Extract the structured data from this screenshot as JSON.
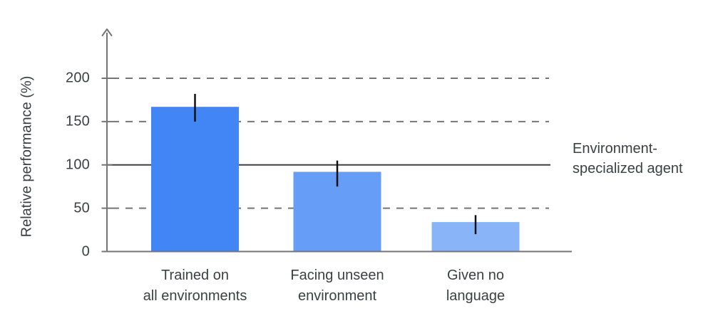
{
  "chart_data": {
    "type": "bar",
    "title": "",
    "unit": "%",
    "ylabel": "Relative performance (%)",
    "xlabel": "",
    "categories": [
      "Trained on all environments",
      "Facing unseen environment",
      "Given no language"
    ],
    "categories_display": [
      "Trained on\nall environments",
      "Facing unseen\nenvironment",
      "Given no\nlanguage"
    ],
    "values": [
      167,
      92,
      34
    ],
    "error_bars": [
      {
        "low": 150,
        "high": 182
      },
      {
        "low": 75,
        "high": 105
      },
      {
        "low": 20,
        "high": 42
      }
    ],
    "bar_colors": [
      "#4285F4",
      "#669DF6",
      "#8AB4F8"
    ],
    "yticks": [
      0,
      50,
      100,
      150,
      200
    ],
    "ytick_labels": [
      "0",
      "50",
      "100",
      "150",
      "200"
    ],
    "ylim": [
      0,
      255
    ],
    "dashed_gridlines": [
      50,
      150,
      200
    ],
    "reference_line": {
      "value": 100,
      "label": "Environment-\nspecialized agent",
      "style": "solid"
    },
    "grid": "horizontal dashed",
    "legend": "none",
    "colors": {
      "axis": "#757575",
      "gridline": "#757575",
      "reference_line": "#3C4043",
      "error_bar": "#111111",
      "text": "#3C4043",
      "background": "#ffffff"
    }
  }
}
